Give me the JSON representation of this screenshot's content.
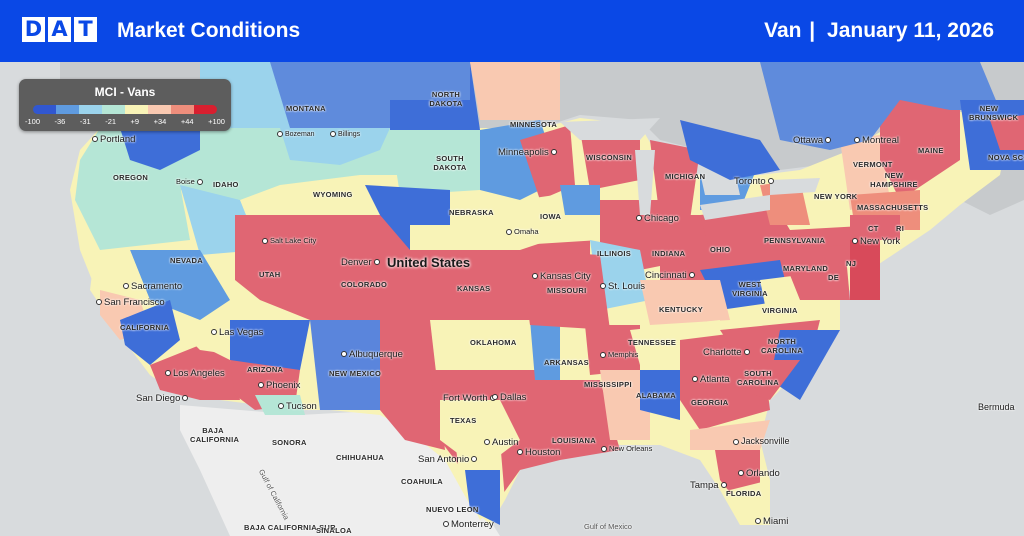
{
  "header": {
    "logo_letters": [
      "D",
      "A",
      "T"
    ],
    "title": "Market Conditions",
    "equipment": "Van",
    "separator": "|",
    "date": "January 11, 2026",
    "background_color": "#0a48e6"
  },
  "legend": {
    "title": "MCI - Vans",
    "ticks": [
      "-100",
      "-36",
      "-31",
      "-21",
      "+9",
      "+34",
      "+44",
      "+100"
    ],
    "colors": [
      "#3157d0",
      "#5f9be0",
      "#9bd3ec",
      "#b5e6d6",
      "#f8f3b7",
      "#f9c9b1",
      "#ee8e7c",
      "#d81f2f"
    ]
  },
  "map": {
    "country": "United States",
    "states": [
      "MONTANA",
      "NORTH DAKOTA",
      "SOUTH DAKOTA",
      "MINNESOTA",
      "WISCONSIN",
      "MICHIGAN",
      "OREGON",
      "IDAHO",
      "WYOMING",
      "NEBRASKA",
      "IOWA",
      "ILLINOIS",
      "INDIANA",
      "OHIO",
      "PENNSYLVANIA",
      "NEW YORK",
      "VERMONT",
      "NEW HAMPSHIRE",
      "MAINE",
      "MASSACHUSETTS",
      "CT",
      "RI",
      "NJ",
      "DE",
      "MARYLAND",
      "WEST VIRGINIA",
      "VIRGINIA",
      "KENTUCKY",
      "TENNESSEE",
      "NORTH CAROLINA",
      "SOUTH CAROLINA",
      "GEORGIA",
      "ALABAMA",
      "MISSISSIPPI",
      "ARKANSAS",
      "LOUISIANA",
      "FLORIDA",
      "OKLAHOMA",
      "TEXAS",
      "NEW MEXICO",
      "ARIZONA",
      "NEVADA",
      "UTAH",
      "COLORADO",
      "KANSAS",
      "MISSOURI",
      "CALIFORNIA"
    ],
    "mexico_regions": [
      "BAJA CALIFORNIA",
      "BAJA CALIFORNIA SUR",
      "SONORA",
      "CHIHUAHUA",
      "COAHUILA",
      "NUEVO LEON",
      "SINALOA"
    ],
    "canada_regions": [
      "NEW BRUNSWICK",
      "NOVA SCO"
    ],
    "cities": [
      "Portland",
      "Boise",
      "Bozeman",
      "Billings",
      "Salt Lake City",
      "Sacramento",
      "San Francisco",
      "Las Vegas",
      "Los Angeles",
      "San Diego",
      "Phoenix",
      "Tucson",
      "Albuquerque",
      "Denver",
      "Omaha",
      "Minneapolis",
      "Chicago",
      "Kansas City",
      "St. Louis",
      "Cincinnati",
      "Memphis",
      "Fort Worth",
      "Dallas",
      "Austin",
      "San Antonio",
      "Houston",
      "New Orleans",
      "Atlanta",
      "Charlotte",
      "Jacksonville",
      "Orlando",
      "Tampa",
      "Miami",
      "New York",
      "Toronto",
      "Ottawa",
      "Montreal",
      "Monterrey"
    ],
    "water": [
      "Gulf of California",
      "Gulf of Mexico",
      "Bermuda"
    ]
  }
}
